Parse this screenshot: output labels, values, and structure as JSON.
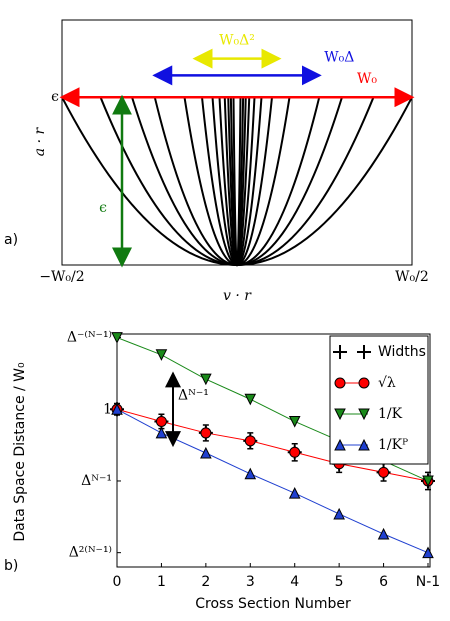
{
  "chart_data": [
    {
      "type": "parabolas",
      "xlabel": "v · r",
      "ylabel": "a · r",
      "panel_label": "a)",
      "xlim": [
        -0.5,
        0.5
      ],
      "ylim": [
        0,
        1.46
      ],
      "xticks": [
        {
          "value": -0.5,
          "label": "−W₀/2"
        },
        {
          "value": 0.5,
          "label": "W₀/2"
        }
      ],
      "yticks": [
        {
          "value": 1,
          "label": "ϵ"
        }
      ],
      "widths": [
        1,
        0.78,
        0.6,
        0.47,
        0.3,
        0.2,
        0.14,
        0.1,
        0.07,
        0.05,
        0.035,
        0.02
      ],
      "color": "#000000",
      "annotations": [
        {
          "text": "W₀",
          "span": 1,
          "color": "#ff0000",
          "direction": "horizontal"
        },
        {
          "text": "W₀Δ",
          "span": 0.47,
          "color": "#1010e0",
          "direction": "horizontal"
        },
        {
          "text": "W₀Δ²",
          "span": 0.24,
          "color": "#e8e800",
          "direction": "horizontal"
        },
        {
          "text": "ϵ",
          "span": 1,
          "color": "#107a10",
          "direction": "vertical"
        }
      ]
    },
    {
      "type": "line",
      "xlabel": "Cross Section Number",
      "ylabel": "Data Space Distance / W₀",
      "panel_label": "b)",
      "categories": [
        "0",
        "1",
        "2",
        "3",
        "4",
        "5",
        "6",
        "N-1"
      ],
      "ylim": [
        2.2,
        -1.05
      ],
      "yticks": [
        {
          "value": -1,
          "label": "Δ⁻⁽ᴺ⁻¹⁾"
        },
        {
          "value": 0,
          "label": "1"
        },
        {
          "value": 1,
          "label": "Δᴺ⁻¹"
        },
        {
          "value": 2,
          "label": "Δ²⁽ᴺ⁻¹⁾"
        }
      ],
      "legend": "upper right",
      "series": [
        {
          "name": "Widths",
          "color": "#000000",
          "marker": "plus",
          "line": false,
          "values": [
            0,
            0.17,
            0.33,
            0.44,
            0.6,
            0.76,
            0.88,
            1.0
          ],
          "errors": [
            0.08,
            0.1,
            0.11,
            0.11,
            0.12,
            0.12,
            0.12,
            0.12
          ]
        },
        {
          "name": "√λ",
          "color": "#ff0000",
          "marker": "circle",
          "line": true,
          "values": [
            0,
            0.17,
            0.33,
            0.44,
            0.6,
            0.76,
            0.88,
            1.0
          ]
        },
        {
          "name": "1/K",
          "color": "#1a8a1a",
          "marker": "tri-down",
          "line": true,
          "values": [
            -1,
            -0.76,
            -0.42,
            -0.14,
            0.17,
            0.44,
            0.72,
            1.0
          ]
        },
        {
          "name": "1/Kᴾ",
          "color": "#2040d0",
          "marker": "tri-up",
          "line": true,
          "values": [
            0,
            0.33,
            0.61,
            0.9,
            1.17,
            1.46,
            1.74,
            2.0
          ]
        }
      ],
      "annotations": [
        {
          "text": "Δᴺ⁻¹",
          "span": 1,
          "color": "#000000",
          "direction": "vertical"
        }
      ]
    }
  ]
}
